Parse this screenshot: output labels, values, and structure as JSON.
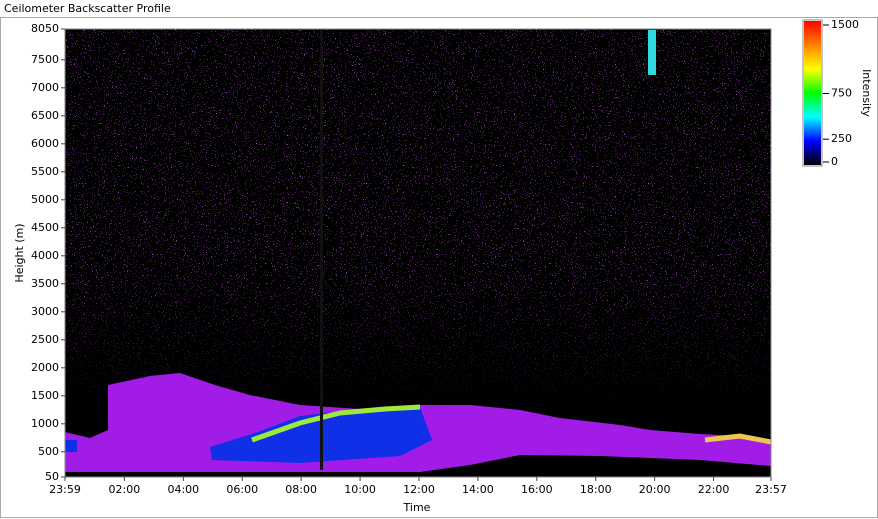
{
  "chart_data": {
    "type": "heatmap",
    "title": "Ceilometer Backscatter Profile",
    "xlabel": "Time",
    "ylabel": "Height (m)",
    "xlim": [
      -1,
      1437
    ],
    "xticks": [
      {
        "value": -1,
        "label": "23:59"
      },
      {
        "value": 120,
        "label": "02:00"
      },
      {
        "value": 240,
        "label": "04:00"
      },
      {
        "value": 360,
        "label": "06:00"
      },
      {
        "value": 480,
        "label": "08:00"
      },
      {
        "value": 600,
        "label": "10:00"
      },
      {
        "value": 720,
        "label": "12:00"
      },
      {
        "value": 840,
        "label": "14:00"
      },
      {
        "value": 960,
        "label": "16:00"
      },
      {
        "value": 1080,
        "label": "18:00"
      },
      {
        "value": 1200,
        "label": "20:00"
      },
      {
        "value": 1320,
        "label": "22:00"
      },
      {
        "value": 1437,
        "label": "23:57"
      }
    ],
    "ylim": [
      50,
      8050
    ],
    "yticks": [
      50,
      500,
      1000,
      1500,
      2000,
      2500,
      3000,
      3500,
      4000,
      4500,
      5000,
      5500,
      6000,
      6500,
      7000,
      7500,
      8050
    ],
    "colorbar": {
      "label": "Intensity",
      "lim": [
        0,
        1500
      ],
      "ticks": [
        0,
        250,
        750,
        1500
      ],
      "colors": [
        "#000000",
        "#0000ff",
        "#00ffff",
        "#00ff00",
        "#ffff00",
        "#ff8000",
        "#ff0000"
      ]
    }
  }
}
